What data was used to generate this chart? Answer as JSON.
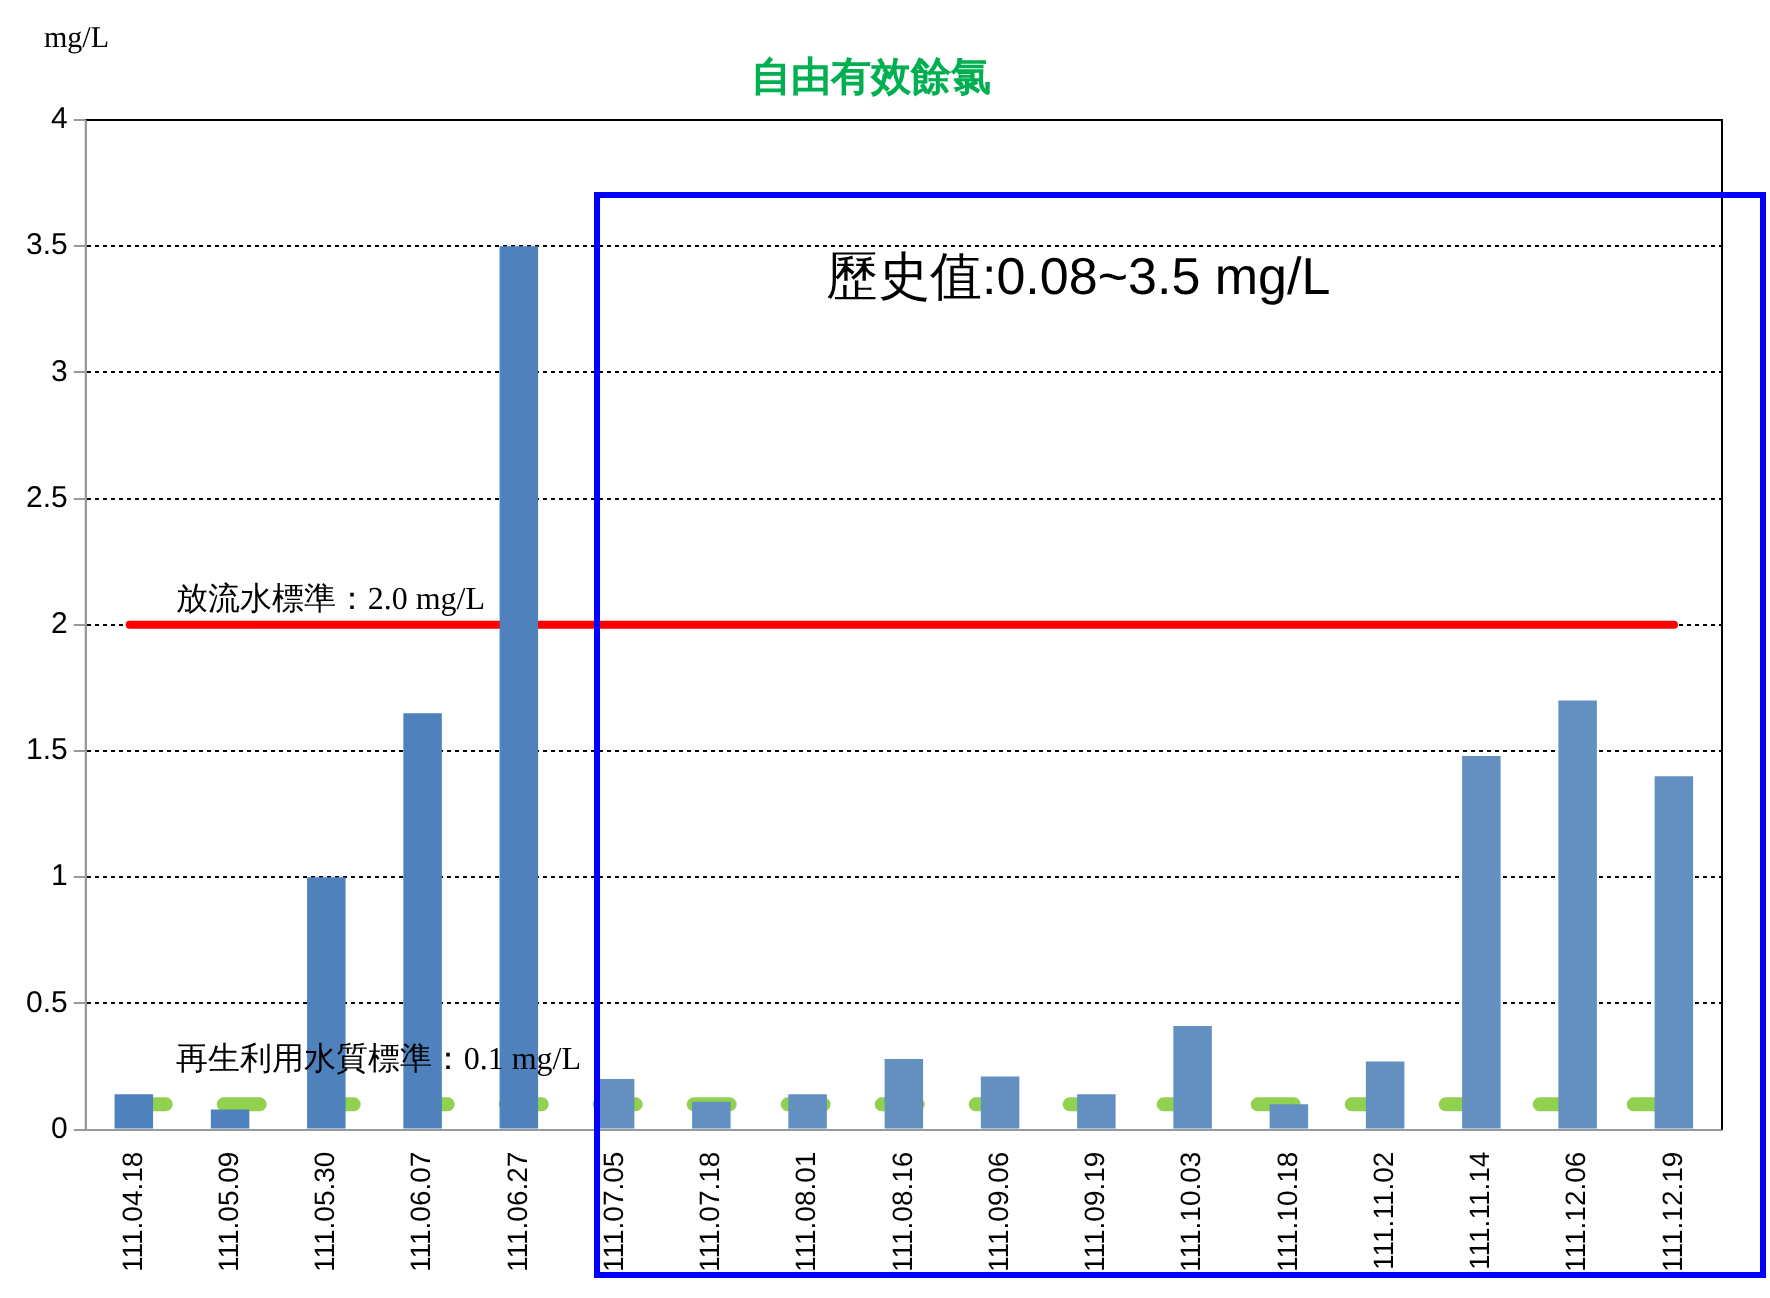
{
  "chart_data": {
    "type": "bar",
    "title": "自由有效餘氯",
    "ylabel": "mg/L",
    "categories": [
      "111.04.18",
      "111.05.09",
      "111.05.30",
      "111.06.07",
      "111.06.27",
      "111.07.05",
      "111.07.18",
      "111.08.01",
      "111.08.16",
      "111.09.06",
      "111.09.19",
      "111.10.03",
      "111.10.18",
      "111.11.02",
      "111.11.14",
      "111.12.06",
      "111.12.19"
    ],
    "values": [
      0.14,
      0.08,
      1.0,
      1.65,
      3.5,
      0.2,
      0.11,
      0.14,
      0.28,
      0.21,
      0.14,
      0.41,
      0.1,
      0.27,
      1.48,
      1.7,
      1.4
    ],
    "colors": [
      "#4f81bd",
      "#4f81bd",
      "#4f81bd",
      "#4f81bd",
      "#4f81bd",
      "#6390c0",
      "#6390c0",
      "#6390c0",
      "#6390c0",
      "#6390c0",
      "#6390c0",
      "#6390c0",
      "#6390c0",
      "#6390c0",
      "#6390c0",
      "#6390c0",
      "#6390c0"
    ],
    "ylim": [
      0,
      4
    ],
    "yticks": [
      0,
      0.5,
      1,
      1.5,
      2,
      2.5,
      3,
      3.5,
      4
    ],
    "grid": "y",
    "legend": false,
    "ref_lines": [
      {
        "axis": "y",
        "value": 2.0,
        "label": "放流水標準：2.0 mg/L",
        "color": "#ff0000",
        "line_style": "solid"
      },
      {
        "axis": "y",
        "value": 0.1,
        "label": "再生利用水質標準：0.1 mg/L",
        "color": "#92d050",
        "line_style": "dashed"
      }
    ],
    "annotations": [
      "歷史值:0.08~3.5 mg/L"
    ]
  }
}
